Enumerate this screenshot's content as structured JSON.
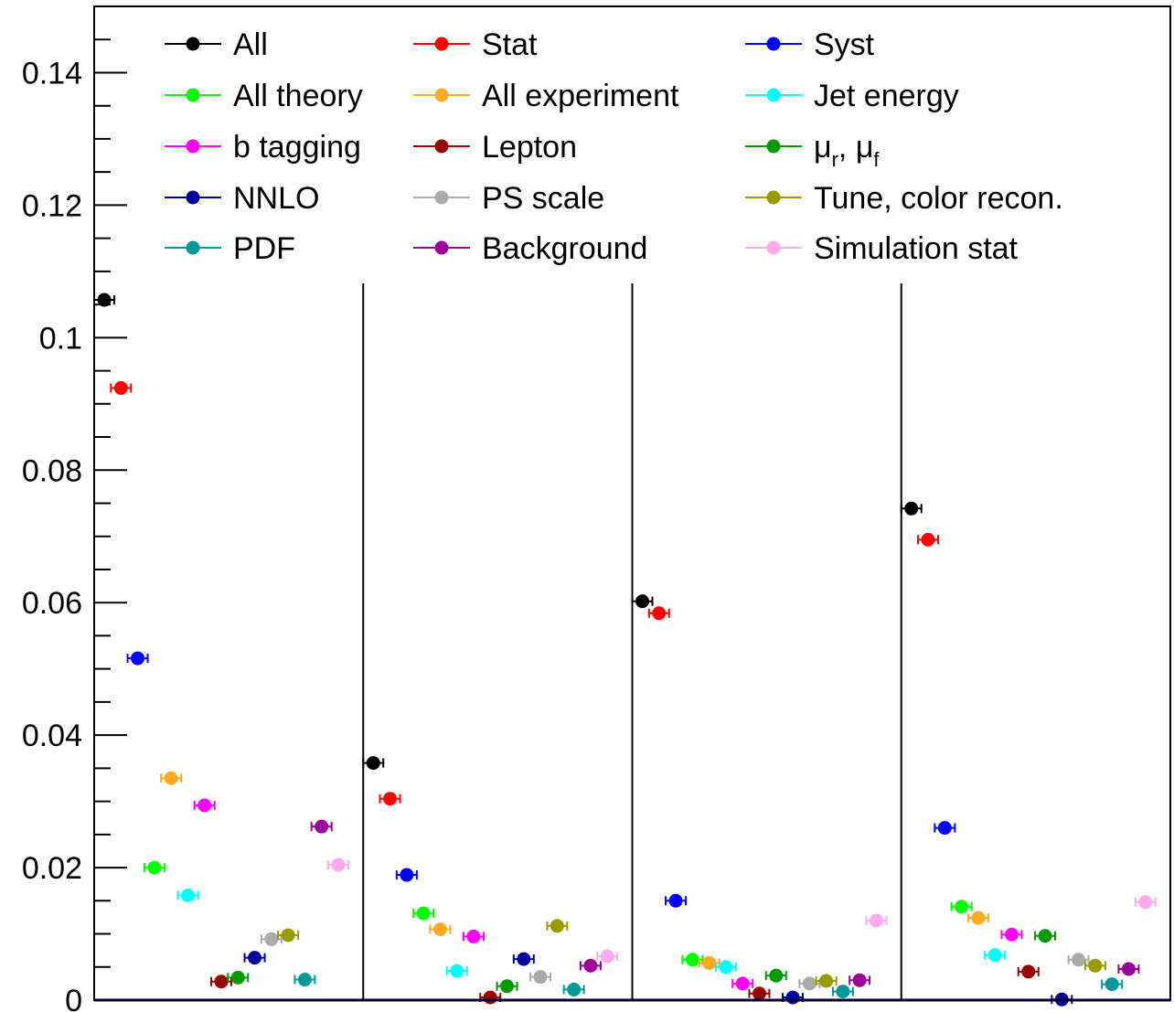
{
  "chart_data": {
    "type": "scatter",
    "title": "",
    "xlabel": "",
    "ylabel": "",
    "ylim": [
      0,
      0.15
    ],
    "y_ticks": [
      "0",
      "0.02",
      "0.04",
      "0.06",
      "0.08",
      "0.1",
      "0.12",
      "0.14"
    ],
    "grid": false,
    "legend_position": "top",
    "groups": 4,
    "series": [
      {
        "name": "All",
        "color": "#000000",
        "values": [
          0.1057,
          0.0358,
          0.0602,
          0.0742
        ]
      },
      {
        "name": "Stat",
        "color": "#ff0000",
        "values": [
          0.0924,
          0.0304,
          0.0584,
          0.0695
        ]
      },
      {
        "name": "Syst",
        "color": "#0000ff",
        "values": [
          0.0516,
          0.0189,
          0.015,
          0.026
        ]
      },
      {
        "name": "All theory",
        "color": "#00ff00",
        "values": [
          0.02,
          0.0131,
          0.0061,
          0.0141
        ]
      },
      {
        "name": "All experiment",
        "color": "#ffaa22",
        "values": [
          0.0335,
          0.0107,
          0.0056,
          0.0124
        ]
      },
      {
        "name": "Jet energy",
        "color": "#00ffff",
        "values": [
          0.0158,
          0.0044,
          0.005,
          0.0068
        ]
      },
      {
        "name": "b tagging",
        "color": "#ff00ff",
        "values": [
          0.0294,
          0.0096,
          0.0025,
          0.0099
        ]
      },
      {
        "name": "Lepton",
        "color": "#990000",
        "values": [
          0.0028,
          0.0004,
          0.001,
          0.0043
        ]
      },
      {
        "name": "μ_r, μ_f",
        "label_main": "μ",
        "sub_r": "r",
        "sep": ", ",
        "sub_f": "f",
        "color": "#009900",
        "values": [
          0.0034,
          0.0021,
          0.0037,
          0.0097
        ]
      },
      {
        "name": "NNLO",
        "color": "#000099",
        "values": [
          0.0064,
          0.0062,
          0.0004,
          0.0001
        ]
      },
      {
        "name": "PS scale",
        "color": "#aaaaaa",
        "values": [
          0.0092,
          0.0035,
          0.0025,
          0.0061
        ]
      },
      {
        "name": "Tune, color recon.",
        "color": "#999900",
        "values": [
          0.0098,
          0.0112,
          0.0029,
          0.0052
        ]
      },
      {
        "name": "PDF",
        "color": "#009999",
        "values": [
          0.0031,
          0.0016,
          0.0013,
          0.0024
        ]
      },
      {
        "name": "Background",
        "color": "#990099",
        "values": [
          0.0262,
          0.0052,
          0.003,
          0.0047
        ]
      },
      {
        "name": "Simulation stat",
        "color": "#ffaaee",
        "values": [
          0.0204,
          0.0066,
          0.012,
          0.0148
        ]
      }
    ]
  }
}
